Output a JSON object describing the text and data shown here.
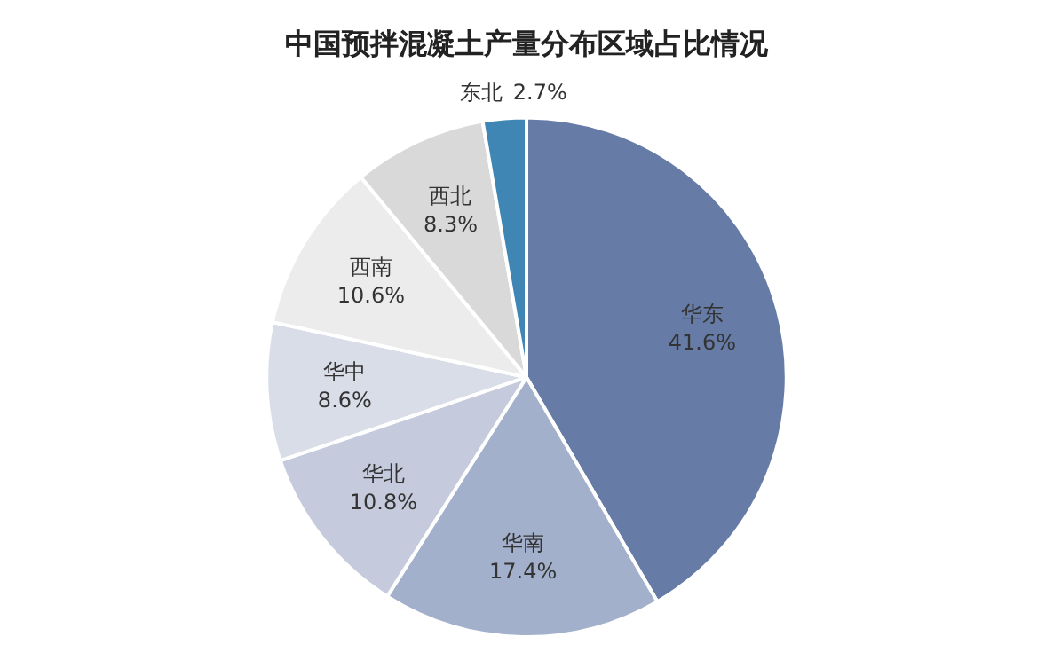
{
  "chart_data": {
    "type": "pie",
    "title": "中国预拌混凝土产量分布区域占比情况",
    "categories": [
      "华东",
      "华南",
      "华北",
      "华中",
      "西南",
      "西北",
      "东北"
    ],
    "values": [
      41.6,
      17.4,
      10.8,
      8.6,
      10.6,
      8.3,
      2.7
    ],
    "value_labels": [
      "41.6%",
      "17.4%",
      "10.8%",
      "8.6%",
      "10.6%",
      "8.3%",
      "2.7%"
    ],
    "colors": [
      "#667ba6",
      "#a3b0cb",
      "#c5cbdc",
      "#d9dde7",
      "#ececec",
      "#d9d9d9",
      "#3f86b5"
    ],
    "legend": false
  }
}
